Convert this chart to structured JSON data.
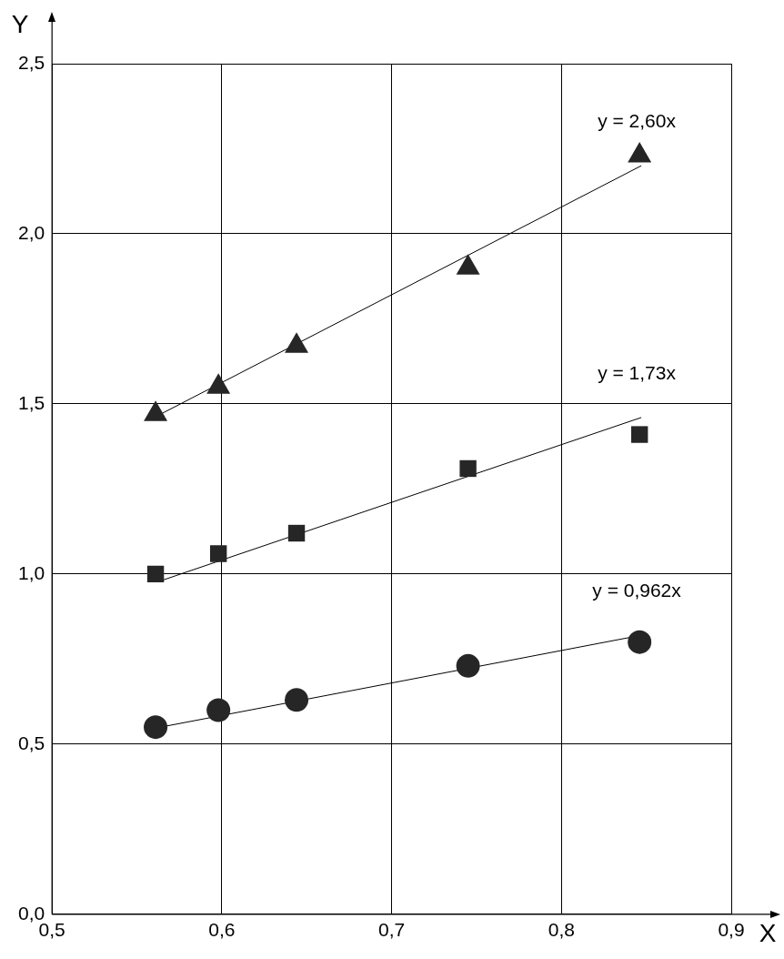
{
  "chart_data": {
    "type": "scatter",
    "xlabel": "X",
    "ylabel": "Y",
    "xlim": [
      0.5,
      0.9
    ],
    "ylim": [
      0,
      2.5
    ],
    "xticks": [
      {
        "value": 0.5,
        "label": "0,5"
      },
      {
        "value": 0.6,
        "label": "0,6"
      },
      {
        "value": 0.7,
        "label": "0,7"
      },
      {
        "value": 0.8,
        "label": "0,8"
      },
      {
        "value": 0.9,
        "label": "0,9"
      }
    ],
    "yticks": [
      {
        "value": 0,
        "label": "0,0"
      },
      {
        "value": 0.5,
        "label": "0,5"
      },
      {
        "value": 1,
        "label": "1,0"
      },
      {
        "value": 1.5,
        "label": "1,5"
      },
      {
        "value": 2,
        "label": "2,0"
      },
      {
        "value": 2.5,
        "label": "2,5"
      }
    ],
    "grid": true,
    "legend": false,
    "series": [
      {
        "type": "scatter",
        "marker": "triangle",
        "color": "#262626",
        "x": [
          0.561,
          0.598,
          0.644,
          0.745,
          0.846
        ],
        "values": [
          1.47,
          1.55,
          1.67,
          1.9,
          2.23
        ]
      },
      {
        "type": "scatter",
        "marker": "square",
        "color": "#262626",
        "x": [
          0.561,
          0.598,
          0.644,
          0.745,
          0.846
        ],
        "values": [
          1.0,
          1.06,
          1.12,
          1.31,
          1.41
        ]
      },
      {
        "type": "scatter",
        "marker": "circle",
        "color": "#262626",
        "x": [
          0.561,
          0.598,
          0.644,
          0.745,
          0.846
        ],
        "values": [
          0.55,
          0.6,
          0.63,
          0.73,
          0.8
        ]
      },
      {
        "type": "line",
        "marker": "none",
        "color": "#000000",
        "x": [
          0.564,
          0.847
        ],
        "values": [
          1.47,
          2.2
        ]
      },
      {
        "type": "line",
        "marker": "none",
        "color": "#000000",
        "x": [
          0.564,
          0.847
        ],
        "values": [
          0.98,
          1.46
        ]
      },
      {
        "type": "line",
        "marker": "none",
        "color": "#000000",
        "x": [
          0.564,
          0.847
        ],
        "values": [
          0.55,
          0.82
        ]
      }
    ],
    "annotations": [
      "y = 2,60x",
      "y = 1,73x",
      "y = 0,962x"
    ]
  }
}
